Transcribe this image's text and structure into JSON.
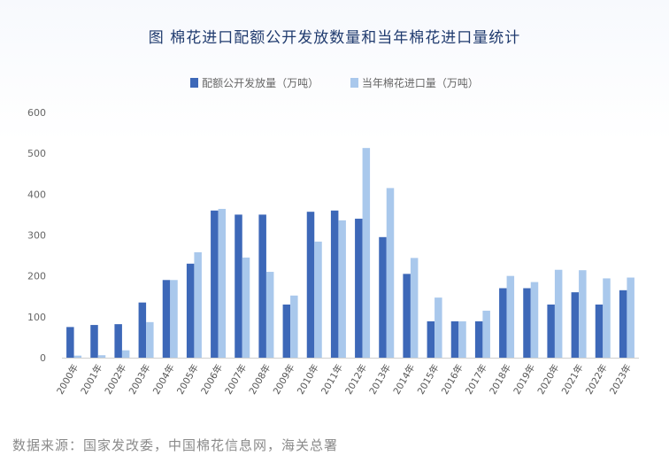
{
  "colors": {
    "series1": "#3d68b8",
    "series2": "#a9c8ec",
    "title": "#1f3a6e"
  },
  "chart_data": {
    "type": "bar",
    "title": "图 棉花进口配额公开发放数量和当年棉花进口量统计",
    "xlabel": "",
    "ylabel": "",
    "ylim": [
      0,
      600
    ],
    "yticks": [
      "0",
      "100",
      "200",
      "300",
      "400",
      "500",
      "600"
    ],
    "legend_position": "top",
    "grid": false,
    "categories": [
      "2000年",
      "2001年",
      "2002年",
      "2003年",
      "2004年",
      "2005年",
      "2006年",
      "2007年",
      "2008年",
      "2009年",
      "2010年",
      "2011年",
      "2012年",
      "2013年",
      "2014年",
      "2015年",
      "2016年",
      "2017年",
      "2018年",
      "2019年",
      "2020年",
      "2021年",
      "2022年",
      "2023年"
    ],
    "series": [
      {
        "name": "配额公开发放量（万吨）",
        "values": [
          75,
          80,
          82,
          135,
          190,
          230,
          360,
          350,
          350,
          130,
          357,
          360,
          340,
          295,
          205,
          89,
          89,
          89,
          170,
          170,
          130,
          160,
          130,
          165
        ]
      },
      {
        "name": "当年棉花进口量（万吨）",
        "values": [
          5,
          6,
          18,
          87,
          190,
          258,
          364,
          245,
          210,
          152,
          284,
          336,
          513,
          415,
          244,
          147,
          89,
          115,
          200,
          185,
          215,
          214,
          194,
          196
        ]
      }
    ]
  },
  "source": "数据来源：国家发改委，中国棉花信息网，海关总署"
}
